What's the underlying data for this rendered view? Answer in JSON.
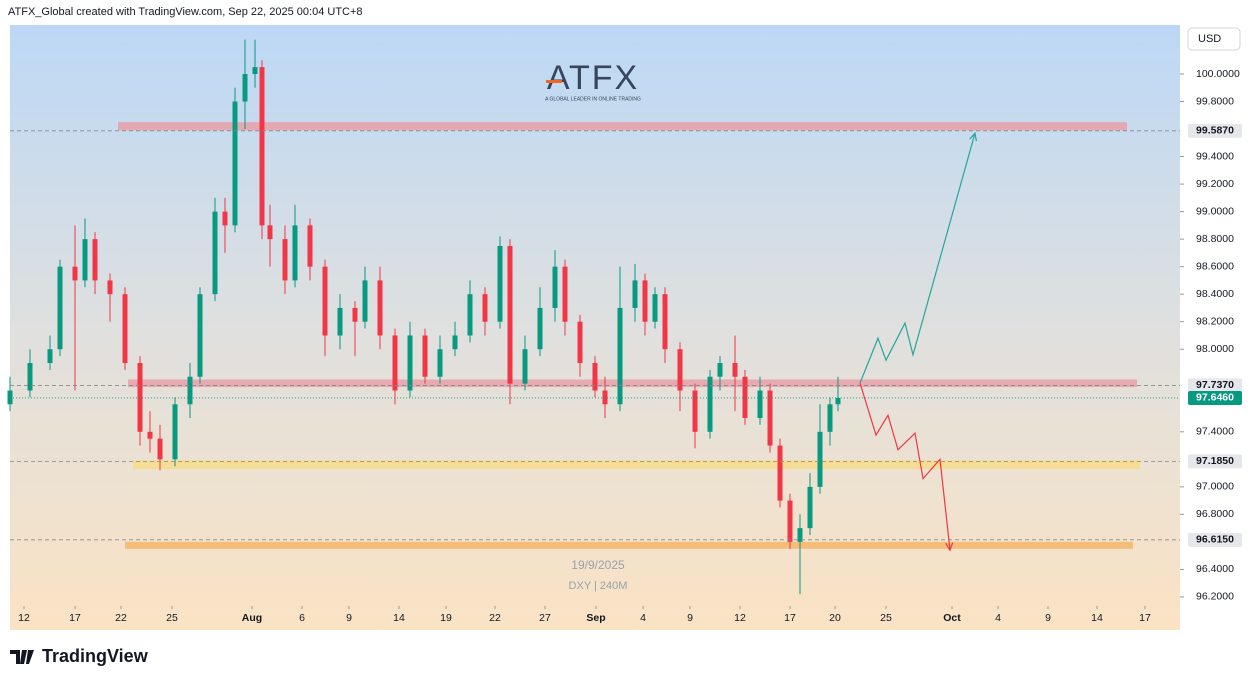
{
  "header": "ATFX_Global created with TradingView.com, Sep 22, 2025 00:04 UTC+8",
  "footer": "TradingView",
  "logo": {
    "name": "ATFX",
    "tagline": "A GLOBAL LEADER IN ONLINE TRADING"
  },
  "chart_data": {
    "type": "candlestick",
    "currency": "USD",
    "watermark": {
      "date": "19/9/2025",
      "symbol": "DXY | 240M"
    },
    "up_color": "#089981",
    "down_color": "#f23645",
    "xlim": [
      0,
      117
    ],
    "ylim": [
      96.156,
      100.356
    ],
    "xticks": [
      {
        "value": 1.4,
        "label": "12"
      },
      {
        "value": 6.5,
        "label": "17"
      },
      {
        "value": 11.1,
        "label": "22"
      },
      {
        "value": 16.2,
        "label": "25"
      },
      {
        "value": 24.2,
        "label": "Aug"
      },
      {
        "value": 29.2,
        "label": "6"
      },
      {
        "value": 33.9,
        "label": "9"
      },
      {
        "value": 38.9,
        "label": "14"
      },
      {
        "value": 43.6,
        "label": "19"
      },
      {
        "value": 48.5,
        "label": "22"
      },
      {
        "value": 53.5,
        "label": "27"
      },
      {
        "value": 58.6,
        "label": "Sep"
      },
      {
        "value": 63.3,
        "label": "4"
      },
      {
        "value": 68,
        "label": "9"
      },
      {
        "value": 73,
        "label": "12"
      },
      {
        "value": 78,
        "label": "17"
      },
      {
        "value": 82.5,
        "label": "20"
      },
      {
        "value": 87.6,
        "label": "25"
      },
      {
        "value": 94.2,
        "label": "Oct"
      },
      {
        "value": 98.8,
        "label": "4"
      },
      {
        "value": 103.8,
        "label": "9"
      },
      {
        "value": 108.7,
        "label": "14"
      },
      {
        "value": 113.5,
        "label": "17"
      }
    ],
    "yticks": [
      {
        "value": 96.2,
        "label": "96.2000"
      },
      {
        "value": 96.4,
        "label": "96.4000"
      },
      {
        "value": 96.8,
        "label": "96.8000"
      },
      {
        "value": 97.0,
        "label": "97.0000"
      },
      {
        "value": 97.4,
        "label": "97.4000"
      },
      {
        "value": 98.0,
        "label": "98.0000"
      },
      {
        "value": 98.2,
        "label": "98.2000"
      },
      {
        "value": 98.4,
        "label": "98.4000"
      },
      {
        "value": 98.6,
        "label": "98.6000"
      },
      {
        "value": 98.8,
        "label": "98.8000"
      },
      {
        "value": 99.0,
        "label": "99.0000"
      },
      {
        "value": 99.2,
        "label": "99.2000"
      },
      {
        "value": 99.4,
        "label": "99.4000"
      },
      {
        "value": 99.8,
        "label": "99.8000"
      },
      {
        "value": 100.0,
        "label": "100.0000"
      }
    ],
    "price_labels": [
      {
        "value": 99.587,
        "label": "99.5870"
      },
      {
        "value": 97.737,
        "label": "97.7370"
      },
      {
        "value": 97.646,
        "label": "97.6460",
        "current": true
      },
      {
        "value": 97.185,
        "label": "97.1850"
      },
      {
        "value": 96.615,
        "label": "96.6150"
      }
    ],
    "zones": [
      {
        "x": [
          10.8,
          111.7
        ],
        "y": [
          99.59,
          99.65
        ],
        "color": "#e8a0a8"
      },
      {
        "x": [
          11.8,
          112.7
        ],
        "y": [
          97.725,
          97.78
        ],
        "color": "#e8a0a8"
      },
      {
        "x": [
          12.3,
          113
        ],
        "y": [
          97.13,
          97.195
        ],
        "color": "#f7dc8c"
      },
      {
        "x": [
          11.5,
          112.3
        ],
        "y": [
          96.55,
          96.6
        ],
        "color": "#f5b66a"
      }
    ],
    "projections": [
      {
        "color": "#26a69a",
        "x": [
          85,
          86.8,
          87.6,
          89.5,
          90.3,
          96.5
        ],
        "y": [
          97.754,
          98.08,
          97.92,
          98.19,
          97.96,
          99.57
        ]
      },
      {
        "color": "#f23645",
        "x": [
          85,
          86.6,
          87.8,
          88.8,
          90.5,
          91.3,
          93,
          94
        ],
        "y": [
          97.754,
          97.376,
          97.52,
          97.27,
          97.39,
          97.06,
          97.2,
          96.54
        ]
      }
    ],
    "candles": [
      [
        0,
        97.6,
        97.8,
        97.55,
        97.7
      ],
      [
        2,
        97.7,
        98.0,
        97.65,
        97.9
      ],
      [
        4,
        97.9,
        98.1,
        97.85,
        98.0
      ],
      [
        5,
        98.0,
        98.65,
        97.95,
        98.6
      ],
      [
        6.5,
        98.6,
        98.9,
        97.7,
        98.5
      ],
      [
        7.5,
        98.5,
        98.95,
        98.45,
        98.8
      ],
      [
        8.5,
        98.8,
        98.85,
        98.4,
        98.5
      ],
      [
        10,
        98.5,
        98.55,
        98.2,
        98.4
      ],
      [
        11.5,
        98.4,
        98.45,
        97.85,
        97.9
      ],
      [
        13,
        97.9,
        97.95,
        97.3,
        97.4
      ],
      [
        14,
        97.4,
        97.55,
        97.25,
        97.35
      ],
      [
        15,
        97.35,
        97.45,
        97.12,
        97.2
      ],
      [
        16.5,
        97.2,
        97.65,
        97.15,
        97.6
      ],
      [
        18,
        97.6,
        97.9,
        97.5,
        97.8
      ],
      [
        19,
        97.8,
        98.45,
        97.75,
        98.4
      ],
      [
        20.5,
        98.4,
        99.1,
        98.35,
        99.0
      ],
      [
        21.5,
        99.0,
        99.1,
        98.7,
        98.9
      ],
      [
        22.5,
        98.9,
        99.9,
        98.85,
        99.8
      ],
      [
        23.5,
        99.8,
        100.25,
        99.6,
        100.0
      ],
      [
        24.5,
        100.0,
        100.25,
        99.9,
        100.05
      ],
      [
        25.2,
        100.05,
        100.1,
        98.8,
        98.9
      ],
      [
        26,
        98.9,
        99.05,
        98.6,
        98.8
      ],
      [
        27.5,
        98.8,
        98.9,
        98.4,
        98.5
      ],
      [
        28.5,
        98.5,
        99.05,
        98.45,
        98.9
      ],
      [
        30,
        98.9,
        98.95,
        98.5,
        98.6
      ],
      [
        31.5,
        98.6,
        98.65,
        97.95,
        98.1
      ],
      [
        33,
        98.1,
        98.4,
        98.0,
        98.3
      ],
      [
        34.5,
        98.3,
        98.35,
        97.95,
        98.2
      ],
      [
        35.5,
        98.2,
        98.6,
        98.15,
        98.5
      ],
      [
        37,
        98.5,
        98.6,
        98.0,
        98.1
      ],
      [
        38.5,
        98.1,
        98.15,
        97.6,
        97.7
      ],
      [
        40,
        97.7,
        98.2,
        97.65,
        98.1
      ],
      [
        41.5,
        98.1,
        98.15,
        97.75,
        97.8
      ],
      [
        43,
        97.8,
        98.1,
        97.75,
        98.0
      ],
      [
        44.5,
        98.0,
        98.2,
        97.95,
        98.1
      ],
      [
        46,
        98.1,
        98.5,
        98.05,
        98.4
      ],
      [
        47.5,
        98.4,
        98.45,
        98.1,
        98.2
      ],
      [
        49,
        98.2,
        98.82,
        98.15,
        98.75
      ],
      [
        50,
        98.75,
        98.8,
        97.6,
        97.75
      ],
      [
        51.5,
        97.75,
        98.1,
        97.7,
        98.0
      ],
      [
        53,
        98.0,
        98.45,
        97.95,
        98.3
      ],
      [
        54.5,
        98.3,
        98.72,
        98.2,
        98.6
      ],
      [
        55.5,
        98.6,
        98.65,
        98.1,
        98.2
      ],
      [
        57,
        98.2,
        98.25,
        97.8,
        97.9
      ],
      [
        58.5,
        97.9,
        97.95,
        97.65,
        97.7
      ],
      [
        59.5,
        97.7,
        97.8,
        97.5,
        97.6
      ],
      [
        61,
        97.6,
        98.6,
        97.55,
        98.3
      ],
      [
        62.5,
        98.3,
        98.62,
        98.2,
        98.5
      ],
      [
        63.5,
        98.5,
        98.55,
        98.1,
        98.2
      ],
      [
        64.5,
        98.2,
        98.45,
        98.15,
        98.4
      ],
      [
        65.5,
        98.4,
        98.45,
        97.9,
        98.0
      ],
      [
        67,
        98.0,
        98.05,
        97.55,
        97.7
      ],
      [
        68.5,
        97.7,
        97.75,
        97.28,
        97.4
      ],
      [
        70,
        97.4,
        97.85,
        97.35,
        97.8
      ],
      [
        71,
        97.8,
        97.95,
        97.7,
        97.9
      ],
      [
        72.5,
        97.9,
        98.1,
        97.55,
        97.8
      ],
      [
        73.5,
        97.8,
        97.85,
        97.45,
        97.5
      ],
      [
        75,
        97.5,
        97.8,
        97.45,
        97.7
      ],
      [
        76,
        97.7,
        97.75,
        97.25,
        97.3
      ],
      [
        77,
        97.3,
        97.35,
        96.85,
        96.9
      ],
      [
        78,
        96.9,
        96.95,
        96.55,
        96.6
      ],
      [
        79,
        96.6,
        96.8,
        96.22,
        96.7
      ],
      [
        80,
        96.7,
        97.1,
        96.65,
        97.0
      ],
      [
        81,
        97.0,
        97.6,
        96.95,
        97.4
      ],
      [
        82,
        97.4,
        97.65,
        97.3,
        97.6
      ],
      [
        82.8,
        97.6,
        97.8,
        97.55,
        97.646
      ]
    ]
  }
}
